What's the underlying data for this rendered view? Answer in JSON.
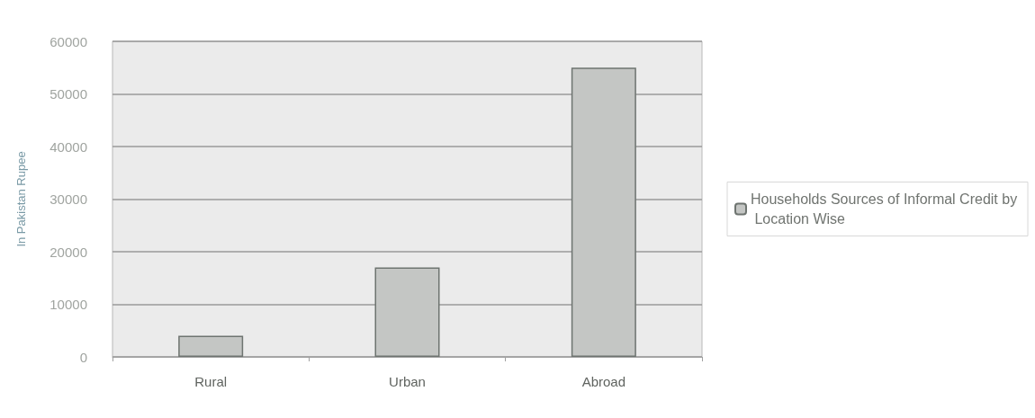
{
  "chart_data": {
    "type": "bar",
    "ylabel": "In Pakistan Rupee",
    "categories": [
      "Rural",
      "Urban",
      "Abroad"
    ],
    "series": [
      {
        "name": "Households Sources of Informal Credit by Location Wise",
        "color": "#c4c6c4",
        "values": [
          4000,
          17000,
          55000
        ]
      }
    ],
    "ylim": [
      0,
      60000
    ],
    "yticks": [
      0,
      10000,
      20000,
      30000,
      40000,
      50000,
      60000
    ],
    "grid": "y",
    "legend": "right"
  }
}
